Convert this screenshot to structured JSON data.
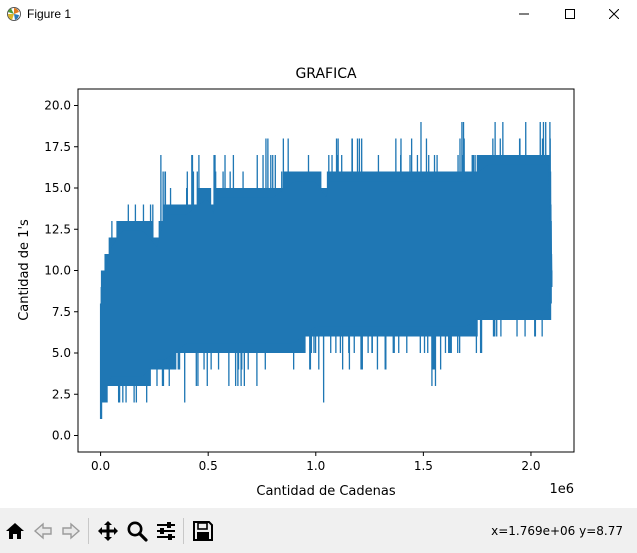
{
  "window": {
    "title": "Figure 1",
    "controls": [
      "minimize",
      "maximize",
      "close"
    ]
  },
  "toolbar": {
    "buttons": [
      "home-icon",
      "back-icon",
      "forward-icon",
      "pan-icon",
      "zoom-icon",
      "configure-subplots-icon",
      "save-icon"
    ],
    "coords_text": "x=1.769e+06 y=8.77"
  },
  "colors": {
    "series": "#1f77b4",
    "toolbar_bg": "#f0f0f0",
    "axes_edge": "#000000"
  },
  "chart_data": {
    "type": "line",
    "title": "GRAFICA",
    "xlabel": "Cantidad de Cadenas",
    "ylabel": "Cantidad de 1's",
    "x_offset_text": "1e6",
    "xlim": [
      -0.105,
      2.2
    ],
    "ylim": [
      -1.0,
      21.0
    ],
    "x_ticks": [
      0.0,
      0.5,
      1.0,
      1.5,
      2.0
    ],
    "x_tick_labels": [
      "0.0",
      "0.5",
      "1.0",
      "1.5",
      "2.0"
    ],
    "y_ticks": [
      0.0,
      2.5,
      5.0,
      7.5,
      10.0,
      12.5,
      15.0,
      17.5,
      20.0
    ],
    "y_tick_labels": [
      "0.0",
      "2.5",
      "5.0",
      "7.5",
      "10.0",
      "12.5",
      "15.0",
      "17.5",
      "20.0"
    ],
    "grid": false,
    "series": [
      {
        "x_range": [
          0,
          2.097
        ],
        "envelope": {
          "x": [
            0.0,
            0.01,
            0.05,
            0.1,
            0.2,
            0.262,
            0.3,
            0.4,
            0.5,
            0.524,
            0.53,
            0.6,
            0.7,
            0.786,
            0.8,
            0.9,
            1.0,
            1.048,
            1.06,
            1.2,
            1.3,
            1.4,
            1.5,
            1.572,
            1.59,
            1.7,
            1.8,
            1.9,
            2.0,
            2.09,
            2.097
          ],
          "max": [
            9,
            11,
            13,
            14,
            15,
            18,
            16,
            17,
            17,
            18,
            17,
            17,
            17,
            18,
            18,
            18,
            18,
            19,
            18,
            18,
            18,
            18,
            19,
            19,
            18,
            19,
            19,
            19,
            19,
            20,
            20
          ],
          "min": [
            0,
            0,
            0,
            1,
            1,
            0,
            2,
            2,
            3,
            0,
            3,
            3,
            3,
            1,
            4,
            4,
            4,
            0,
            4,
            4,
            4,
            5,
            5,
            2,
            5,
            5,
            5,
            5,
            6,
            6,
            9
          ],
          "core_hi": [
            8,
            10,
            12,
            13,
            13,
            12,
            14,
            14,
            15,
            14,
            15,
            15,
            15,
            15,
            15,
            16,
            16,
            15,
            16,
            16,
            16,
            16,
            16,
            16,
            16,
            16,
            17,
            17,
            17,
            17,
            10
          ],
          "core_lo": [
            1,
            2,
            3,
            3,
            3,
            4,
            4,
            5,
            5,
            5,
            5,
            5,
            5,
            5,
            5,
            5,
            6,
            6,
            6,
            6,
            6,
            6,
            6,
            6,
            6,
            6,
            7,
            7,
            7,
            7,
            9
          ]
        }
      }
    ]
  }
}
